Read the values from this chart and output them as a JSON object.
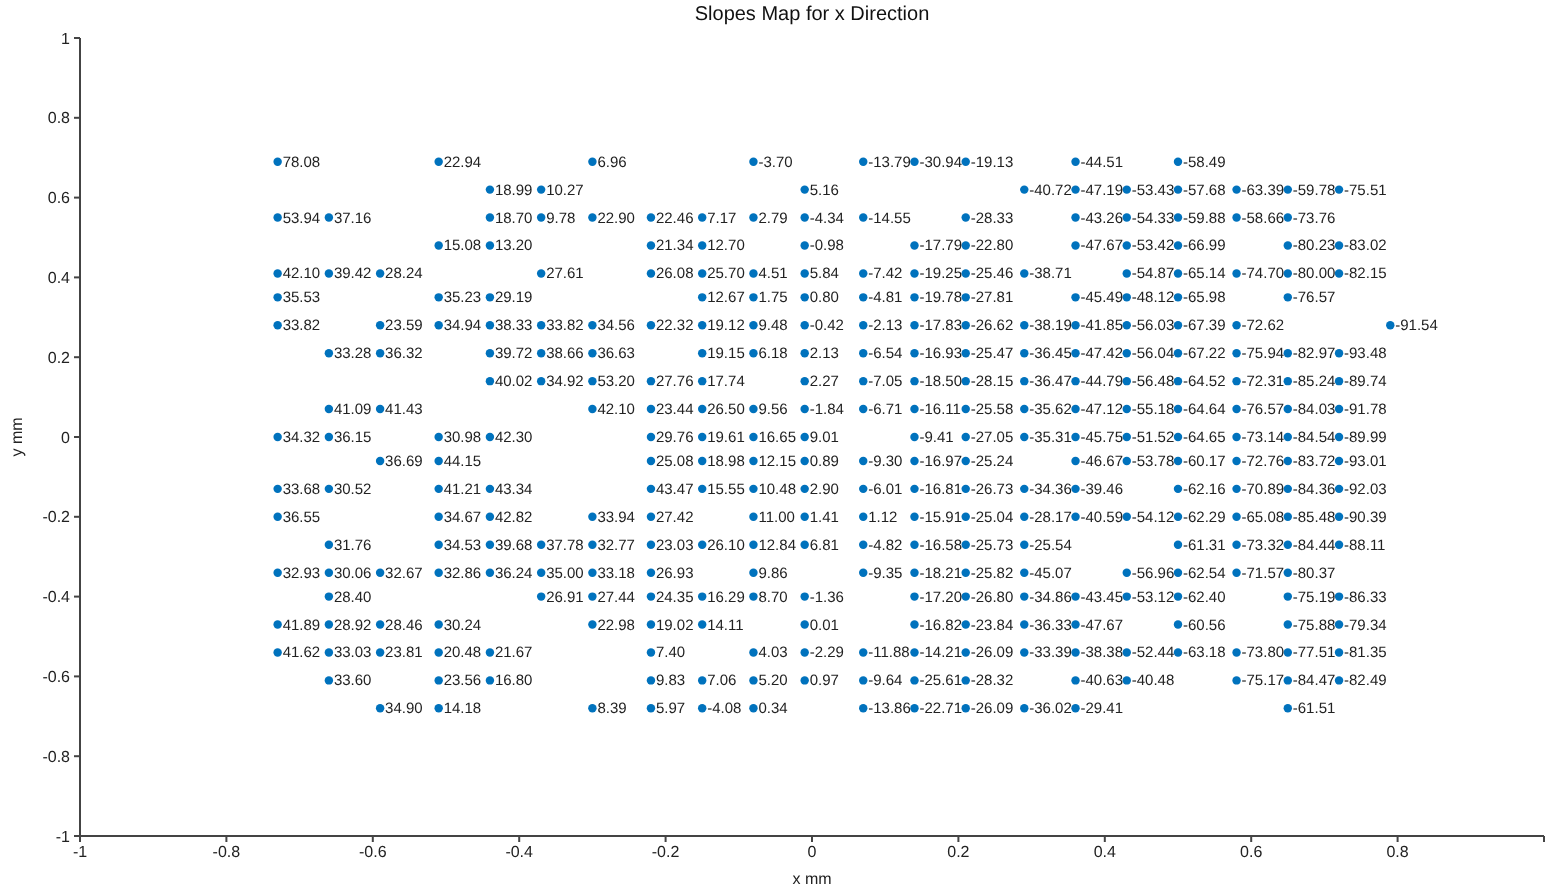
{
  "chart_data": {
    "type": "scatter",
    "title": "Slopes Map for x Direction",
    "xlabel": "x mm",
    "ylabel": "y mm",
    "color": "#0072bd",
    "marker": "circle",
    "xlim": [
      -1,
      1
    ],
    "ylim": [
      -1,
      1
    ],
    "xticks": [
      -1,
      -0.8,
      -0.6,
      -0.4,
      -0.2,
      0,
      0.2,
      0.4,
      0.6,
      0.8,
      {
        "value": 1,
        "label": null
      }
    ],
    "yticks": [
      -1,
      -0.8,
      -0.6,
      -0.4,
      -0.2,
      0,
      0.2,
      0.4,
      0.6,
      0.8,
      1
    ],
    "series": [
      {
        "x": [
          -0.73,
          -0.51,
          -0.3,
          -0.08,
          0.07,
          0.14,
          0.21,
          0.36,
          0.5
        ],
        "values": [
          0.69,
          0.69,
          0.69,
          0.69,
          0.69,
          0.69,
          0.69,
          0.69,
          0.69
        ]
      },
      {
        "x": [
          -0.44,
          -0.37,
          -0.01,
          0.29,
          0.36,
          0.43,
          0.5,
          0.58,
          0.65,
          0.72
        ],
        "values": [
          0.62,
          0.62,
          0.62,
          0.62,
          0.62,
          0.62,
          0.62,
          0.62,
          0.62,
          0.62
        ]
      },
      {
        "x": [
          -0.73,
          -0.66,
          -0.44,
          -0.37,
          -0.3,
          -0.22,
          -0.15,
          -0.08,
          -0.01,
          0.07,
          0.21,
          0.36,
          0.43,
          0.5,
          0.58,
          0.65
        ],
        "values": [
          0.55,
          0.55,
          0.55,
          0.55,
          0.55,
          0.55,
          0.55,
          0.55,
          0.55,
          0.55,
          0.55,
          0.55,
          0.55,
          0.55,
          0.55,
          0.55
        ]
      },
      {
        "x": [
          -0.51,
          -0.44,
          -0.22,
          -0.15,
          -0.01,
          0.14,
          0.21,
          0.36,
          0.43,
          0.5,
          0.65,
          0.72
        ],
        "values": [
          0.48,
          0.48,
          0.48,
          0.48,
          0.48,
          0.48,
          0.48,
          0.48,
          0.48,
          0.48,
          0.48,
          0.48
        ]
      },
      {
        "x": [
          -0.73,
          -0.66,
          -0.59,
          -0.37,
          -0.22,
          -0.15,
          -0.08,
          -0.01,
          0.07,
          0.14,
          0.21,
          0.29,
          0.43,
          0.5,
          0.58,
          0.65,
          0.72
        ],
        "values": [
          0.41,
          0.41,
          0.41,
          0.41,
          0.41,
          0.41,
          0.41,
          0.41,
          0.41,
          0.41,
          0.41,
          0.41,
          0.41,
          0.41,
          0.41,
          0.41,
          0.41
        ]
      },
      {
        "x": [
          -0.73,
          -0.51,
          -0.44,
          -0.15,
          -0.08,
          -0.01,
          0.07,
          0.14,
          0.21,
          0.36,
          0.43,
          0.5,
          0.65
        ],
        "values": [
          0.35,
          0.35,
          0.35,
          0.35,
          0.35,
          0.35,
          0.35,
          0.35,
          0.35,
          0.35,
          0.35,
          0.35,
          0.35
        ]
      },
      {
        "x": [
          -0.73,
          -0.59,
          -0.51,
          -0.44,
          -0.37,
          -0.3,
          -0.22,
          -0.15,
          -0.08,
          -0.01,
          0.07,
          0.14,
          0.21,
          0.29,
          0.36,
          0.43,
          0.5,
          0.58,
          0.79
        ],
        "values": [
          0.28,
          0.28,
          0.28,
          0.28,
          0.28,
          0.28,
          0.28,
          0.28,
          0.28,
          0.28,
          0.28,
          0.28,
          0.28,
          0.28,
          0.28,
          0.28,
          0.28,
          0.28,
          0.28
        ]
      },
      {
        "x": [
          -0.66,
          -0.59,
          -0.44,
          -0.37,
          -0.3,
          -0.15,
          -0.08,
          -0.01,
          0.07,
          0.14,
          0.21,
          0.29,
          0.36,
          0.43,
          0.5,
          0.58,
          0.65,
          0.72
        ],
        "values": [
          0.21,
          0.21,
          0.21,
          0.21,
          0.21,
          0.21,
          0.21,
          0.21,
          0.21,
          0.21,
          0.21,
          0.21,
          0.21,
          0.21,
          0.21,
          0.21,
          0.21,
          0.21
        ]
      },
      {
        "x": [
          -0.44,
          -0.37,
          -0.3,
          -0.22,
          -0.15,
          -0.01,
          0.07,
          0.14,
          0.21,
          0.29,
          0.36,
          0.43,
          0.5,
          0.58,
          0.65,
          0.72
        ],
        "values": [
          0.14,
          0.14,
          0.14,
          0.14,
          0.14,
          0.14,
          0.14,
          0.14,
          0.14,
          0.14,
          0.14,
          0.14,
          0.14,
          0.14,
          0.14,
          0.14
        ]
      },
      {
        "x": [
          -0.66,
          -0.59,
          -0.3,
          -0.22,
          -0.15,
          -0.08,
          -0.01,
          0.07,
          0.14,
          0.21,
          0.29,
          0.36,
          0.43,
          0.5,
          0.58,
          0.65,
          0.72
        ],
        "values": [
          0.07,
          0.07,
          0.07,
          0.07,
          0.07,
          0.07,
          0.07,
          0.07,
          0.07,
          0.07,
          0.07,
          0.07,
          0.07,
          0.07,
          0.07,
          0.07,
          0.07
        ]
      },
      {
        "x": [
          -0.73,
          -0.66,
          -0.51,
          -0.44,
          -0.22,
          -0.15,
          -0.08,
          -0.01,
          0.14,
          0.21,
          0.29,
          0.36,
          0.43,
          0.5,
          0.58,
          0.65,
          0.72
        ],
        "values": [
          0,
          0,
          0,
          0,
          0,
          0,
          0,
          0,
          0,
          0,
          0,
          0,
          0,
          0,
          0,
          0,
          0
        ]
      },
      {
        "x": [
          -0.59,
          -0.51,
          -0.22,
          -0.15,
          -0.08,
          -0.01,
          0.07,
          0.14,
          0.21,
          0.36,
          0.43,
          0.5,
          0.58,
          0.65,
          0.72
        ],
        "values": [
          -0.06,
          -0.06,
          -0.06,
          -0.06,
          -0.06,
          -0.06,
          -0.06,
          -0.06,
          -0.06,
          -0.06,
          -0.06,
          -0.06,
          -0.06,
          -0.06,
          -0.06
        ]
      },
      {
        "x": [
          -0.73,
          -0.66,
          -0.51,
          -0.44,
          -0.22,
          -0.15,
          -0.08,
          -0.01,
          0.07,
          0.14,
          0.21,
          0.29,
          0.36,
          0.5,
          0.58,
          0.65,
          0.72
        ],
        "values": [
          -0.13,
          -0.13,
          -0.13,
          -0.13,
          -0.13,
          -0.13,
          -0.13,
          -0.13,
          -0.13,
          -0.13,
          -0.13,
          -0.13,
          -0.13,
          -0.13,
          -0.13,
          -0.13,
          -0.13
        ]
      },
      {
        "x": [
          -0.73,
          -0.51,
          -0.44,
          -0.3,
          -0.22,
          -0.08,
          -0.01,
          0.07,
          0.14,
          0.21,
          0.29,
          0.36,
          0.43,
          0.5,
          0.58,
          0.65,
          0.72
        ],
        "values": [
          -0.2,
          -0.2,
          -0.2,
          -0.2,
          -0.2,
          -0.2,
          -0.2,
          -0.2,
          -0.2,
          -0.2,
          -0.2,
          -0.2,
          -0.2,
          -0.2,
          -0.2,
          -0.2,
          -0.2
        ]
      },
      {
        "x": [
          -0.66,
          -0.51,
          -0.44,
          -0.37,
          -0.3,
          -0.22,
          -0.15,
          -0.08,
          -0.01,
          0.07,
          0.14,
          0.21,
          0.29,
          0.5,
          0.58,
          0.65,
          0.72
        ],
        "values": [
          -0.27,
          -0.27,
          -0.27,
          -0.27,
          -0.27,
          -0.27,
          -0.27,
          -0.27,
          -0.27,
          -0.27,
          -0.27,
          -0.27,
          -0.27,
          -0.27,
          -0.27,
          -0.27,
          -0.27
        ]
      },
      {
        "x": [
          -0.73,
          -0.66,
          -0.59,
          -0.51,
          -0.44,
          -0.37,
          -0.3,
          -0.22,
          -0.08,
          0.07,
          0.14,
          0.21,
          0.29,
          0.43,
          0.5,
          0.58,
          0.65
        ],
        "values": [
          -0.34,
          -0.34,
          -0.34,
          -0.34,
          -0.34,
          -0.34,
          -0.34,
          -0.34,
          -0.34,
          -0.34,
          -0.34,
          -0.34,
          -0.34,
          -0.34,
          -0.34,
          -0.34,
          -0.34
        ]
      },
      {
        "x": [
          -0.66,
          -0.37,
          -0.3,
          -0.22,
          -0.15,
          -0.08,
          -0.01,
          0.14,
          0.21,
          0.29,
          0.36,
          0.43,
          0.5,
          0.65,
          0.72
        ],
        "values": [
          -0.4,
          -0.4,
          -0.4,
          -0.4,
          -0.4,
          -0.4,
          -0.4,
          -0.4,
          -0.4,
          -0.4,
          -0.4,
          -0.4,
          -0.4,
          -0.4,
          -0.4
        ]
      },
      {
        "x": [
          -0.73,
          -0.66,
          -0.59,
          -0.51,
          -0.3,
          -0.22,
          -0.15,
          -0.01,
          0.14,
          0.21,
          0.29,
          0.36,
          0.5,
          0.65,
          0.72
        ],
        "values": [
          -0.47,
          -0.47,
          -0.47,
          -0.47,
          -0.47,
          -0.47,
          -0.47,
          -0.47,
          -0.47,
          -0.47,
          -0.47,
          -0.47,
          -0.47,
          -0.47,
          -0.47
        ]
      },
      {
        "x": [
          -0.73,
          -0.66,
          -0.59,
          -0.51,
          -0.44,
          -0.22,
          -0.08,
          -0.01,
          0.07,
          0.14,
          0.21,
          0.29,
          0.36,
          0.43,
          0.5,
          0.58,
          0.65,
          0.72
        ],
        "values": [
          -0.54,
          -0.54,
          -0.54,
          -0.54,
          -0.54,
          -0.54,
          -0.54,
          -0.54,
          -0.54,
          -0.54,
          -0.54,
          -0.54,
          -0.54,
          -0.54,
          -0.54,
          -0.54,
          -0.54,
          -0.54
        ]
      },
      {
        "x": [
          -0.66,
          -0.51,
          -0.44,
          -0.22,
          -0.15,
          -0.08,
          -0.01,
          0.07,
          0.14,
          0.21,
          0.36,
          0.43,
          0.58,
          0.65,
          0.72
        ],
        "values": [
          -0.61,
          -0.61,
          -0.61,
          -0.61,
          -0.61,
          -0.61,
          -0.61,
          -0.61,
          -0.61,
          -0.61,
          -0.61,
          -0.61,
          -0.61,
          -0.61,
          -0.61
        ]
      },
      {
        "x": [
          -0.59,
          -0.51,
          -0.3,
          -0.22,
          -0.15,
          -0.08,
          0.07,
          0.14,
          0.21,
          0.29,
          0.36,
          0.65
        ],
        "values": [
          -0.68,
          -0.68,
          -0.68,
          -0.68,
          -0.68,
          -0.68,
          -0.68,
          -0.68,
          -0.68,
          -0.68,
          -0.68,
          -0.68
        ]
      }
    ],
    "annotations": [
      {
        "text": "78.08",
        "x": -0.73,
        "y": 0.69
      },
      {
        "text": "22.94",
        "x": -0.51,
        "y": 0.69
      },
      {
        "text": "6.96",
        "x": -0.3,
        "y": 0.69
      },
      {
        "text": "-3.70",
        "x": -0.08,
        "y": 0.69
      },
      {
        "text": "-13.79",
        "x": 0.07,
        "y": 0.69
      },
      {
        "text": "-30.94",
        "x": 0.14,
        "y": 0.69
      },
      {
        "text": "-19.13",
        "x": 0.21,
        "y": 0.69
      },
      {
        "text": "-44.51",
        "x": 0.36,
        "y": 0.69
      },
      {
        "text": "-58.49",
        "x": 0.5,
        "y": 0.69
      },
      {
        "text": "18.99",
        "x": -0.44,
        "y": 0.62
      },
      {
        "text": "10.27",
        "x": -0.37,
        "y": 0.62
      },
      {
        "text": "5.16",
        "x": -0.01,
        "y": 0.62
      },
      {
        "text": "-40.72",
        "x": 0.29,
        "y": 0.62
      },
      {
        "text": "-47.19",
        "x": 0.36,
        "y": 0.62
      },
      {
        "text": "-53.43",
        "x": 0.43,
        "y": 0.62
      },
      {
        "text": "-57.68",
        "x": 0.5,
        "y": 0.62
      },
      {
        "text": "-63.39",
        "x": 0.58,
        "y": 0.62
      },
      {
        "text": "-59.78",
        "x": 0.65,
        "y": 0.62
      },
      {
        "text": "-75.51",
        "x": 0.72,
        "y": 0.62
      },
      {
        "text": "53.94",
        "x": -0.73,
        "y": 0.55
      },
      {
        "text": "37.16",
        "x": -0.66,
        "y": 0.55
      },
      {
        "text": "18.70",
        "x": -0.44,
        "y": 0.55
      },
      {
        "text": "9.78",
        "x": -0.37,
        "y": 0.55
      },
      {
        "text": "22.90",
        "x": -0.3,
        "y": 0.55
      },
      {
        "text": "22.46",
        "x": -0.22,
        "y": 0.55
      },
      {
        "text": "7.17",
        "x": -0.15,
        "y": 0.55
      },
      {
        "text": "2.79",
        "x": -0.08,
        "y": 0.55
      },
      {
        "text": "-4.34",
        "x": -0.01,
        "y": 0.55
      },
      {
        "text": "-14.55",
        "x": 0.07,
        "y": 0.55
      },
      {
        "text": "-28.33",
        "x": 0.21,
        "y": 0.55
      },
      {
        "text": "-43.26",
        "x": 0.36,
        "y": 0.55
      },
      {
        "text": "-54.33",
        "x": 0.43,
        "y": 0.55
      },
      {
        "text": "-59.88",
        "x": 0.5,
        "y": 0.55
      },
      {
        "text": "-58.66",
        "x": 0.58,
        "y": 0.55
      },
      {
        "text": "-73.76",
        "x": 0.65,
        "y": 0.55
      },
      {
        "text": "15.08",
        "x": -0.51,
        "y": 0.48
      },
      {
        "text": "13.20",
        "x": -0.44,
        "y": 0.48
      },
      {
        "text": "21.34",
        "x": -0.22,
        "y": 0.48
      },
      {
        "text": "12.70",
        "x": -0.15,
        "y": 0.48
      },
      {
        "text": "-0.98",
        "x": -0.01,
        "y": 0.48
      },
      {
        "text": "-17.79",
        "x": 0.14,
        "y": 0.48
      },
      {
        "text": "-22.80",
        "x": 0.21,
        "y": 0.48
      },
      {
        "text": "-47.67",
        "x": 0.36,
        "y": 0.48
      },
      {
        "text": "-53.42",
        "x": 0.43,
        "y": 0.48
      },
      {
        "text": "-66.99",
        "x": 0.5,
        "y": 0.48
      },
      {
        "text": "-80.23",
        "x": 0.65,
        "y": 0.48
      },
      {
        "text": "-83.02",
        "x": 0.72,
        "y": 0.48
      },
      {
        "text": "42.10",
        "x": -0.73,
        "y": 0.41
      },
      {
        "text": "39.42",
        "x": -0.66,
        "y": 0.41
      },
      {
        "text": "28.24",
        "x": -0.59,
        "y": 0.41
      },
      {
        "text": "27.61",
        "x": -0.37,
        "y": 0.41
      },
      {
        "text": "26.08",
        "x": -0.22,
        "y": 0.41
      },
      {
        "text": "25.70",
        "x": -0.15,
        "y": 0.41
      },
      {
        "text": "4.51",
        "x": -0.08,
        "y": 0.41
      },
      {
        "text": "5.84",
        "x": -0.01,
        "y": 0.41
      },
      {
        "text": "-7.42",
        "x": 0.07,
        "y": 0.41
      },
      {
        "text": "-19.25",
        "x": 0.14,
        "y": 0.41
      },
      {
        "text": "-25.46",
        "x": 0.21,
        "y": 0.41
      },
      {
        "text": "-38.71",
        "x": 0.29,
        "y": 0.41
      },
      {
        "text": "-54.87",
        "x": 0.43,
        "y": 0.41
      },
      {
        "text": "-65.14",
        "x": 0.5,
        "y": 0.41
      },
      {
        "text": "-74.70",
        "x": 0.58,
        "y": 0.41
      },
      {
        "text": "-80.00",
        "x": 0.65,
        "y": 0.41
      },
      {
        "text": "-82.15",
        "x": 0.72,
        "y": 0.41
      },
      {
        "text": "35.53",
        "x": -0.73,
        "y": 0.35
      },
      {
        "text": "35.23",
        "x": -0.51,
        "y": 0.35
      },
      {
        "text": "29.19",
        "x": -0.44,
        "y": 0.35
      },
      {
        "text": "12.67",
        "x": -0.15,
        "y": 0.35
      },
      {
        "text": "1.75",
        "x": -0.08,
        "y": 0.35
      },
      {
        "text": "0.80",
        "x": -0.01,
        "y": 0.35
      },
      {
        "text": "-4.81",
        "x": 0.07,
        "y": 0.35
      },
      {
        "text": "-19.78",
        "x": 0.14,
        "y": 0.35
      },
      {
        "text": "-27.81",
        "x": 0.21,
        "y": 0.35
      },
      {
        "text": "-45.49",
        "x": 0.36,
        "y": 0.35
      },
      {
        "text": "-48.12",
        "x": 0.43,
        "y": 0.35
      },
      {
        "text": "-65.98",
        "x": 0.5,
        "y": 0.35
      },
      {
        "text": "-76.57",
        "x": 0.65,
        "y": 0.35
      },
      {
        "text": "33.82",
        "x": -0.73,
        "y": 0.28
      },
      {
        "text": "23.59",
        "x": -0.59,
        "y": 0.28
      },
      {
        "text": "34.94",
        "x": -0.51,
        "y": 0.28
      },
      {
        "text": "38.33",
        "x": -0.44,
        "y": 0.28
      },
      {
        "text": "33.82",
        "x": -0.37,
        "y": 0.28
      },
      {
        "text": "34.56",
        "x": -0.3,
        "y": 0.28
      },
      {
        "text": "22.32",
        "x": -0.22,
        "y": 0.28
      },
      {
        "text": "19.12",
        "x": -0.15,
        "y": 0.28
      },
      {
        "text": "9.48",
        "x": -0.08,
        "y": 0.28
      },
      {
        "text": "-0.42",
        "x": -0.01,
        "y": 0.28
      },
      {
        "text": "-2.13",
        "x": 0.07,
        "y": 0.28
      },
      {
        "text": "-17.83",
        "x": 0.14,
        "y": 0.28
      },
      {
        "text": "-26.62",
        "x": 0.21,
        "y": 0.28
      },
      {
        "text": "-38.19",
        "x": 0.29,
        "y": 0.28
      },
      {
        "text": "-41.85",
        "x": 0.36,
        "y": 0.28
      },
      {
        "text": "-56.03",
        "x": 0.43,
        "y": 0.28
      },
      {
        "text": "-67.39",
        "x": 0.5,
        "y": 0.28
      },
      {
        "text": "-72.62",
        "x": 0.58,
        "y": 0.28
      },
      {
        "text": "-91.54",
        "x": 0.79,
        "y": 0.28
      },
      {
        "text": "33.28",
        "x": -0.66,
        "y": 0.21
      },
      {
        "text": "36.32",
        "x": -0.59,
        "y": 0.21
      },
      {
        "text": "39.72",
        "x": -0.44,
        "y": 0.21
      },
      {
        "text": "38.66",
        "x": -0.37,
        "y": 0.21
      },
      {
        "text": "36.63",
        "x": -0.3,
        "y": 0.21
      },
      {
        "text": "19.15",
        "x": -0.15,
        "y": 0.21
      },
      {
        "text": "6.18",
        "x": -0.08,
        "y": 0.21
      },
      {
        "text": "2.13",
        "x": -0.01,
        "y": 0.21
      },
      {
        "text": "-6.54",
        "x": 0.07,
        "y": 0.21
      },
      {
        "text": "-16.93",
        "x": 0.14,
        "y": 0.21
      },
      {
        "text": "-25.47",
        "x": 0.21,
        "y": 0.21
      },
      {
        "text": "-36.45",
        "x": 0.29,
        "y": 0.21
      },
      {
        "text": "-47.42",
        "x": 0.36,
        "y": 0.21
      },
      {
        "text": "-56.04",
        "x": 0.43,
        "y": 0.21
      },
      {
        "text": "-67.22",
        "x": 0.5,
        "y": 0.21
      },
      {
        "text": "-75.94",
        "x": 0.58,
        "y": 0.21
      },
      {
        "text": "-82.97",
        "x": 0.65,
        "y": 0.21
      },
      {
        "text": "-93.48",
        "x": 0.72,
        "y": 0.21
      },
      {
        "text": "40.02",
        "x": -0.44,
        "y": 0.14
      },
      {
        "text": "34.92",
        "x": -0.37,
        "y": 0.14
      },
      {
        "text": "53.20",
        "x": -0.3,
        "y": 0.14
      },
      {
        "text": "27.76",
        "x": -0.22,
        "y": 0.14
      },
      {
        "text": "17.74",
        "x": -0.15,
        "y": 0.14
      },
      {
        "text": "2.27",
        "x": -0.01,
        "y": 0.14
      },
      {
        "text": "-7.05",
        "x": 0.07,
        "y": 0.14
      },
      {
        "text": "-18.50",
        "x": 0.14,
        "y": 0.14
      },
      {
        "text": "-28.15",
        "x": 0.21,
        "y": 0.14
      },
      {
        "text": "-36.47",
        "x": 0.29,
        "y": 0.14
      },
      {
        "text": "-44.79",
        "x": 0.36,
        "y": 0.14
      },
      {
        "text": "-56.48",
        "x": 0.43,
        "y": 0.14
      },
      {
        "text": "-64.52",
        "x": 0.5,
        "y": 0.14
      },
      {
        "text": "-72.31",
        "x": 0.58,
        "y": 0.14
      },
      {
        "text": "-85.24",
        "x": 0.65,
        "y": 0.14
      },
      {
        "text": "-89.74",
        "x": 0.72,
        "y": 0.14
      },
      {
        "text": "41.09",
        "x": -0.66,
        "y": 0.07
      },
      {
        "text": "41.43",
        "x": -0.59,
        "y": 0.07
      },
      {
        "text": "42.10",
        "x": -0.3,
        "y": 0.07
      },
      {
        "text": "23.44",
        "x": -0.22,
        "y": 0.07
      },
      {
        "text": "26.50",
        "x": -0.15,
        "y": 0.07
      },
      {
        "text": "9.56",
        "x": -0.08,
        "y": 0.07
      },
      {
        "text": "-1.84",
        "x": -0.01,
        "y": 0.07
      },
      {
        "text": "-6.71",
        "x": 0.07,
        "y": 0.07
      },
      {
        "text": "-16.11",
        "x": 0.14,
        "y": 0.07
      },
      {
        "text": "-25.58",
        "x": 0.21,
        "y": 0.07
      },
      {
        "text": "-35.62",
        "x": 0.29,
        "y": 0.07
      },
      {
        "text": "-47.12",
        "x": 0.36,
        "y": 0.07
      },
      {
        "text": "-55.18",
        "x": 0.43,
        "y": 0.07
      },
      {
        "text": "-64.64",
        "x": 0.5,
        "y": 0.07
      },
      {
        "text": "-76.57",
        "x": 0.58,
        "y": 0.07
      },
      {
        "text": "-84.03",
        "x": 0.65,
        "y": 0.07
      },
      {
        "text": "-91.78",
        "x": 0.72,
        "y": 0.07
      },
      {
        "text": "34.32",
        "x": -0.73,
        "y": 0
      },
      {
        "text": "36.15",
        "x": -0.66,
        "y": 0
      },
      {
        "text": "30.98",
        "x": -0.51,
        "y": 0
      },
      {
        "text": "42.30",
        "x": -0.44,
        "y": 0
      },
      {
        "text": "29.76",
        "x": -0.22,
        "y": 0
      },
      {
        "text": "19.61",
        "x": -0.15,
        "y": 0
      },
      {
        "text": "16.65",
        "x": -0.08,
        "y": 0
      },
      {
        "text": "9.01",
        "x": -0.01,
        "y": 0
      },
      {
        "text": "-9.41",
        "x": 0.14,
        "y": 0
      },
      {
        "text": "-27.05",
        "x": 0.21,
        "y": 0
      },
      {
        "text": "-35.31",
        "x": 0.29,
        "y": 0
      },
      {
        "text": "-45.75",
        "x": 0.36,
        "y": 0
      },
      {
        "text": "-51.52",
        "x": 0.43,
        "y": 0
      },
      {
        "text": "-64.65",
        "x": 0.5,
        "y": 0
      },
      {
        "text": "-73.14",
        "x": 0.58,
        "y": 0
      },
      {
        "text": "-84.54",
        "x": 0.65,
        "y": 0
      },
      {
        "text": "-89.99",
        "x": 0.72,
        "y": 0
      },
      {
        "text": "36.69",
        "x": -0.59,
        "y": -0.06
      },
      {
        "text": "44.15",
        "x": -0.51,
        "y": -0.06
      },
      {
        "text": "25.08",
        "x": -0.22,
        "y": -0.06
      },
      {
        "text": "18.98",
        "x": -0.15,
        "y": -0.06
      },
      {
        "text": "12.15",
        "x": -0.08,
        "y": -0.06
      },
      {
        "text": "0.89",
        "x": -0.01,
        "y": -0.06
      },
      {
        "text": "-9.30",
        "x": 0.07,
        "y": -0.06
      },
      {
        "text": "-16.97",
        "x": 0.14,
        "y": -0.06
      },
      {
        "text": "-25.24",
        "x": 0.21,
        "y": -0.06
      },
      {
        "text": "-46.67",
        "x": 0.36,
        "y": -0.06
      },
      {
        "text": "-53.78",
        "x": 0.43,
        "y": -0.06
      },
      {
        "text": "-60.17",
        "x": 0.5,
        "y": -0.06
      },
      {
        "text": "-72.76",
        "x": 0.58,
        "y": -0.06
      },
      {
        "text": "-83.72",
        "x": 0.65,
        "y": -0.06
      },
      {
        "text": "-93.01",
        "x": 0.72,
        "y": -0.06
      },
      {
        "text": "33.68",
        "x": -0.73,
        "y": -0.13
      },
      {
        "text": "30.52",
        "x": -0.66,
        "y": -0.13
      },
      {
        "text": "41.21",
        "x": -0.51,
        "y": -0.13
      },
      {
        "text": "43.34",
        "x": -0.44,
        "y": -0.13
      },
      {
        "text": "43.47",
        "x": -0.22,
        "y": -0.13
      },
      {
        "text": "15.55",
        "x": -0.15,
        "y": -0.13
      },
      {
        "text": "10.48",
        "x": -0.08,
        "y": -0.13
      },
      {
        "text": "2.90",
        "x": -0.01,
        "y": -0.13
      },
      {
        "text": "-6.01",
        "x": 0.07,
        "y": -0.13
      },
      {
        "text": "-16.81",
        "x": 0.14,
        "y": -0.13
      },
      {
        "text": "-26.73",
        "x": 0.21,
        "y": -0.13
      },
      {
        "text": "-34.36",
        "x": 0.29,
        "y": -0.13
      },
      {
        "text": "-39.46",
        "x": 0.36,
        "y": -0.13
      },
      {
        "text": "-62.16",
        "x": 0.5,
        "y": -0.13
      },
      {
        "text": "-70.89",
        "x": 0.58,
        "y": -0.13
      },
      {
        "text": "-84.36",
        "x": 0.65,
        "y": -0.13
      },
      {
        "text": "-92.03",
        "x": 0.72,
        "y": -0.13
      },
      {
        "text": "36.55",
        "x": -0.73,
        "y": -0.2
      },
      {
        "text": "34.67",
        "x": -0.51,
        "y": -0.2
      },
      {
        "text": "42.82",
        "x": -0.44,
        "y": -0.2
      },
      {
        "text": "33.94",
        "x": -0.3,
        "y": -0.2
      },
      {
        "text": "27.42",
        "x": -0.22,
        "y": -0.2
      },
      {
        "text": "11.00",
        "x": -0.08,
        "y": -0.2
      },
      {
        "text": "1.41",
        "x": -0.01,
        "y": -0.2
      },
      {
        "text": "1.12",
        "x": 0.07,
        "y": -0.2
      },
      {
        "text": "-15.91",
        "x": 0.14,
        "y": -0.2
      },
      {
        "text": "-25.04",
        "x": 0.21,
        "y": -0.2
      },
      {
        "text": "-28.17",
        "x": 0.29,
        "y": -0.2
      },
      {
        "text": "-40.59",
        "x": 0.36,
        "y": -0.2
      },
      {
        "text": "-54.12",
        "x": 0.43,
        "y": -0.2
      },
      {
        "text": "-62.29",
        "x": 0.5,
        "y": -0.2
      },
      {
        "text": "-65.08",
        "x": 0.58,
        "y": -0.2
      },
      {
        "text": "-85.48",
        "x": 0.65,
        "y": -0.2
      },
      {
        "text": "-90.39",
        "x": 0.72,
        "y": -0.2
      },
      {
        "text": "31.76",
        "x": -0.66,
        "y": -0.27
      },
      {
        "text": "34.53",
        "x": -0.51,
        "y": -0.27
      },
      {
        "text": "39.68",
        "x": -0.44,
        "y": -0.27
      },
      {
        "text": "37.78",
        "x": -0.37,
        "y": -0.27
      },
      {
        "text": "32.77",
        "x": -0.3,
        "y": -0.27
      },
      {
        "text": "23.03",
        "x": -0.22,
        "y": -0.27
      },
      {
        "text": "26.10",
        "x": -0.15,
        "y": -0.27
      },
      {
        "text": "12.84",
        "x": -0.08,
        "y": -0.27
      },
      {
        "text": "6.81",
        "x": -0.01,
        "y": -0.27
      },
      {
        "text": "-4.82",
        "x": 0.07,
        "y": -0.27
      },
      {
        "text": "-16.58",
        "x": 0.14,
        "y": -0.27
      },
      {
        "text": "-25.73",
        "x": 0.21,
        "y": -0.27
      },
      {
        "text": "-25.54",
        "x": 0.29,
        "y": -0.27
      },
      {
        "text": "-61.31",
        "x": 0.5,
        "y": -0.27
      },
      {
        "text": "-73.32",
        "x": 0.58,
        "y": -0.27
      },
      {
        "text": "-84.44",
        "x": 0.65,
        "y": -0.27
      },
      {
        "text": "-88.11",
        "x": 0.72,
        "y": -0.27
      },
      {
        "text": "32.93",
        "x": -0.73,
        "y": -0.34
      },
      {
        "text": "30.06",
        "x": -0.66,
        "y": -0.34
      },
      {
        "text": "32.67",
        "x": -0.59,
        "y": -0.34
      },
      {
        "text": "32.86",
        "x": -0.51,
        "y": -0.34
      },
      {
        "text": "36.24",
        "x": -0.44,
        "y": -0.34
      },
      {
        "text": "35.00",
        "x": -0.37,
        "y": -0.34
      },
      {
        "text": "33.18",
        "x": -0.3,
        "y": -0.34
      },
      {
        "text": "26.93",
        "x": -0.22,
        "y": -0.34
      },
      {
        "text": "9.86",
        "x": -0.08,
        "y": -0.34
      },
      {
        "text": "-9.35",
        "x": 0.07,
        "y": -0.34
      },
      {
        "text": "-18.21",
        "x": 0.14,
        "y": -0.34
      },
      {
        "text": "-25.82",
        "x": 0.21,
        "y": -0.34
      },
      {
        "text": "-45.07",
        "x": 0.29,
        "y": -0.34
      },
      {
        "text": "-56.96",
        "x": 0.43,
        "y": -0.34
      },
      {
        "text": "-62.54",
        "x": 0.5,
        "y": -0.34
      },
      {
        "text": "-71.57",
        "x": 0.58,
        "y": -0.34
      },
      {
        "text": "-80.37",
        "x": 0.65,
        "y": -0.34
      },
      {
        "text": "28.40",
        "x": -0.66,
        "y": -0.4
      },
      {
        "text": "26.91",
        "x": -0.37,
        "y": -0.4
      },
      {
        "text": "27.44",
        "x": -0.3,
        "y": -0.4
      },
      {
        "text": "24.35",
        "x": -0.22,
        "y": -0.4
      },
      {
        "text": "16.29",
        "x": -0.15,
        "y": -0.4
      },
      {
        "text": "8.70",
        "x": -0.08,
        "y": -0.4
      },
      {
        "text": "-1.36",
        "x": -0.01,
        "y": -0.4
      },
      {
        "text": "-17.20",
        "x": 0.14,
        "y": -0.4
      },
      {
        "text": "-26.80",
        "x": 0.21,
        "y": -0.4
      },
      {
        "text": "-34.86",
        "x": 0.29,
        "y": -0.4
      },
      {
        "text": "-43.45",
        "x": 0.36,
        "y": -0.4
      },
      {
        "text": "-53.12",
        "x": 0.43,
        "y": -0.4
      },
      {
        "text": "-62.40",
        "x": 0.5,
        "y": -0.4
      },
      {
        "text": "-75.19",
        "x": 0.65,
        "y": -0.4
      },
      {
        "text": "-86.33",
        "x": 0.72,
        "y": -0.4
      },
      {
        "text": "41.89",
        "x": -0.73,
        "y": -0.47
      },
      {
        "text": "28.92",
        "x": -0.66,
        "y": -0.47
      },
      {
        "text": "28.46",
        "x": -0.59,
        "y": -0.47
      },
      {
        "text": "30.24",
        "x": -0.51,
        "y": -0.47
      },
      {
        "text": "22.98",
        "x": -0.3,
        "y": -0.47
      },
      {
        "text": "19.02",
        "x": -0.22,
        "y": -0.47
      },
      {
        "text": "14.11",
        "x": -0.15,
        "y": -0.47
      },
      {
        "text": "0.01",
        "x": -0.01,
        "y": -0.47
      },
      {
        "text": "-16.82",
        "x": 0.14,
        "y": -0.47
      },
      {
        "text": "-23.84",
        "x": 0.21,
        "y": -0.47
      },
      {
        "text": "-36.33",
        "x": 0.29,
        "y": -0.47
      },
      {
        "text": "-47.67",
        "x": 0.36,
        "y": -0.47
      },
      {
        "text": "-60.56",
        "x": 0.5,
        "y": -0.47
      },
      {
        "text": "-75.88",
        "x": 0.65,
        "y": -0.47
      },
      {
        "text": "-79.34",
        "x": 0.72,
        "y": -0.47
      },
      {
        "text": "41.62",
        "x": -0.73,
        "y": -0.54
      },
      {
        "text": "33.03",
        "x": -0.66,
        "y": -0.54
      },
      {
        "text": "23.81",
        "x": -0.59,
        "y": -0.54
      },
      {
        "text": "20.48",
        "x": -0.51,
        "y": -0.54
      },
      {
        "text": "21.67",
        "x": -0.44,
        "y": -0.54
      },
      {
        "text": "7.40",
        "x": -0.22,
        "y": -0.54
      },
      {
        "text": "4.03",
        "x": -0.08,
        "y": -0.54
      },
      {
        "text": "-2.29",
        "x": -0.01,
        "y": -0.54
      },
      {
        "text": "-11.88",
        "x": 0.07,
        "y": -0.54
      },
      {
        "text": "-14.21",
        "x": 0.14,
        "y": -0.54
      },
      {
        "text": "-26.09",
        "x": 0.21,
        "y": -0.54
      },
      {
        "text": "-33.39",
        "x": 0.29,
        "y": -0.54
      },
      {
        "text": "-38.38",
        "x": 0.36,
        "y": -0.54
      },
      {
        "text": "-52.44",
        "x": 0.43,
        "y": -0.54
      },
      {
        "text": "-63.18",
        "x": 0.5,
        "y": -0.54
      },
      {
        "text": "-73.80",
        "x": 0.58,
        "y": -0.54
      },
      {
        "text": "-77.51",
        "x": 0.65,
        "y": -0.54
      },
      {
        "text": "-81.35",
        "x": 0.72,
        "y": -0.54
      },
      {
        "text": "33.60",
        "x": -0.66,
        "y": -0.61
      },
      {
        "text": "23.56",
        "x": -0.51,
        "y": -0.61
      },
      {
        "text": "16.80",
        "x": -0.44,
        "y": -0.61
      },
      {
        "text": "9.83",
        "x": -0.22,
        "y": -0.61
      },
      {
        "text": "7.06",
        "x": -0.15,
        "y": -0.61
      },
      {
        "text": "5.20",
        "x": -0.08,
        "y": -0.61
      },
      {
        "text": "0.97",
        "x": -0.01,
        "y": -0.61
      },
      {
        "text": "-9.64",
        "x": 0.07,
        "y": -0.61
      },
      {
        "text": "-25.61",
        "x": 0.14,
        "y": -0.61
      },
      {
        "text": "-28.32",
        "x": 0.21,
        "y": -0.61
      },
      {
        "text": "-40.63",
        "x": 0.36,
        "y": -0.61
      },
      {
        "text": "-40.48",
        "x": 0.43,
        "y": -0.61
      },
      {
        "text": "-75.17",
        "x": 0.58,
        "y": -0.61
      },
      {
        "text": "-84.47",
        "x": 0.65,
        "y": -0.61
      },
      {
        "text": "-82.49",
        "x": 0.72,
        "y": -0.61
      },
      {
        "text": "34.90",
        "x": -0.59,
        "y": -0.68
      },
      {
        "text": "14.18",
        "x": -0.51,
        "y": -0.68
      },
      {
        "text": "8.39",
        "x": -0.3,
        "y": -0.68
      },
      {
        "text": "5.97",
        "x": -0.22,
        "y": -0.68
      },
      {
        "text": "-4.08",
        "x": -0.15,
        "y": -0.68
      },
      {
        "text": "0.34",
        "x": -0.08,
        "y": -0.68
      },
      {
        "text": "-13.86",
        "x": 0.07,
        "y": -0.68
      },
      {
        "text": "-22.71",
        "x": 0.14,
        "y": -0.68
      },
      {
        "text": "-26.09",
        "x": 0.21,
        "y": -0.68
      },
      {
        "text": "-36.02",
        "x": 0.29,
        "y": -0.68
      },
      {
        "text": "-29.41",
        "x": 0.36,
        "y": -0.68
      },
      {
        "text": "-61.51",
        "x": 0.65,
        "y": -0.68
      }
    ]
  }
}
